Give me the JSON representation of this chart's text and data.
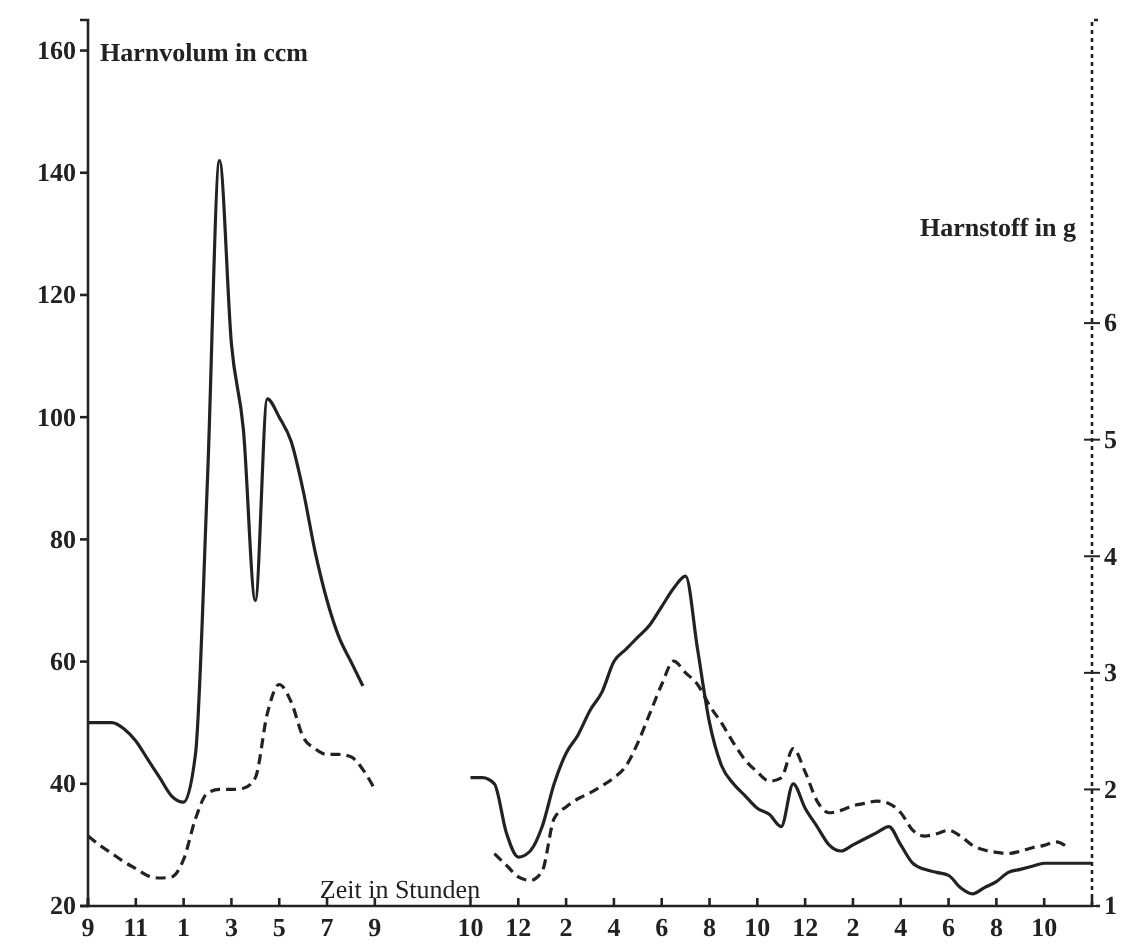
{
  "chart_data": {
    "type": "line",
    "xlabel": "Zeit in Stunden",
    "ylabel": "Harnvolum in ccm",
    "y2label": "Harnstoff in g",
    "categories": [
      "9",
      null,
      null,
      null,
      "11",
      null,
      null,
      null,
      "1",
      null,
      null,
      null,
      "3",
      null,
      null,
      null,
      "5",
      null,
      null,
      null,
      "7",
      null,
      null,
      null,
      "9",
      null,
      null,
      null,
      null,
      null,
      null,
      null,
      "10",
      null,
      null,
      null,
      "12",
      null,
      null,
      null,
      "2",
      null,
      null,
      null,
      "4",
      null,
      null,
      null,
      "6",
      null,
      null,
      null,
      "8",
      null,
      null,
      null,
      "10",
      null,
      null,
      null,
      "12",
      null,
      null,
      null,
      "2",
      null,
      null,
      null,
      "4",
      null,
      null,
      null,
      "6",
      null,
      null,
      null,
      "8",
      null,
      null,
      null,
      "10",
      null,
      null,
      null,
      null
    ],
    "ylim": [
      20,
      165
    ],
    "yticks": [
      20,
      40,
      60,
      80,
      100,
      120,
      140,
      160
    ],
    "y2lim": [
      1,
      8.6
    ],
    "y2ticks": [
      1,
      2,
      3,
      4,
      5,
      6
    ],
    "grid": false,
    "marker": "none",
    "series": [
      {
        "color": "#222222",
        "line_style": "solid",
        "values": [
          50,
          50,
          50,
          49,
          47,
          44,
          41,
          38,
          37,
          45,
          90,
          142,
          112,
          98,
          70,
          103,
          100,
          96,
          88,
          78,
          70,
          64,
          60,
          56,
          null,
          null,
          null,
          null,
          null,
          null,
          null,
          null,
          41,
          41,
          40,
          32,
          28,
          29,
          33,
          40,
          45,
          48,
          52,
          55,
          60,
          62,
          64,
          66,
          69,
          72,
          74,
          62,
          50,
          43,
          40,
          38,
          36,
          35,
          33,
          40,
          36,
          33,
          30,
          29,
          30,
          31,
          32,
          33,
          30,
          27,
          26,
          25.5,
          25,
          23,
          22,
          23,
          24,
          25.5,
          26,
          26.5,
          27,
          27,
          27,
          27,
          27
        ]
      },
      {
        "color": "#222222",
        "line_style": "dashed",
        "axis": "y2",
        "values": [
          1.6,
          1.52,
          1.45,
          1.38,
          1.32,
          1.26,
          1.24,
          1.25,
          1.4,
          1.75,
          1.97,
          2.0,
          2.0,
          2.01,
          2.1,
          2.65,
          2.9,
          2.75,
          2.45,
          2.35,
          2.3,
          2.3,
          2.28,
          2.17,
          2.0,
          null,
          null,
          null,
          null,
          null,
          null,
          null,
          null,
          null,
          1.45,
          1.35,
          1.25,
          1.22,
          1.3,
          1.75,
          1.85,
          1.92,
          1.97,
          2.03,
          2.1,
          2.2,
          2.4,
          2.65,
          2.9,
          3.1,
          3.0,
          2.9,
          2.72,
          2.57,
          2.4,
          2.25,
          2.15,
          2.07,
          2.1,
          2.35,
          2.15,
          1.9,
          1.8,
          1.82,
          1.86,
          1.88,
          1.9,
          1.88,
          1.8,
          1.65,
          1.6,
          1.62,
          1.65,
          1.6,
          1.52,
          1.48,
          1.46,
          1.45,
          1.47,
          1.5,
          1.52,
          1.55,
          1.5,
          null,
          null
        ]
      }
    ]
  }
}
